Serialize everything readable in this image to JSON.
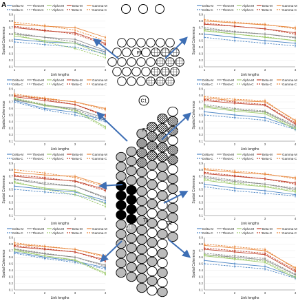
{
  "figure": {
    "panel_letter": "A",
    "region_labels": [
      "F1",
      "C1",
      "F2",
      "T1",
      "O1",
      "O2"
    ]
  },
  "legend_entries": [
    "Delta-M",
    "Theta-M",
    "Alpha-M",
    "Beta-M",
    "Gamma-M",
    "Delta-C",
    "Theta-C",
    "Alpha-C",
    "Beta-C",
    "Gamma-C"
  ],
  "colors": {
    "Delta": "#4f87c5",
    "Theta": "#8a8a8a",
    "Alpha": "#9cc96b",
    "Beta": "#c0402a",
    "Gamma": "#e8873c"
  },
  "chart_data": [
    {
      "type": "line",
      "xlabel": "Link lengths",
      "ylabel": "Spatial Coherence",
      "x": [
        1,
        2,
        3,
        4
      ],
      "ylim": [
        0.1,
        0.9
      ],
      "yticks": [
        0.1,
        0.2,
        0.3,
        0.4,
        0.5,
        0.6,
        0.7,
        0.8,
        0.9
      ],
      "series": [
        {
          "name": "Delta-M",
          "values": [
            0.52,
            0.48,
            0.46,
            0.33
          ]
        },
        {
          "name": "Theta-M",
          "values": [
            0.6,
            0.55,
            0.52,
            0.35
          ]
        },
        {
          "name": "Alpha-M",
          "values": [
            0.57,
            0.5,
            0.46,
            0.28
          ]
        },
        {
          "name": "Beta-M",
          "values": [
            0.7,
            0.65,
            0.62,
            0.46
          ]
        },
        {
          "name": "Gamma-M",
          "values": [
            0.75,
            0.72,
            0.7,
            0.55
          ]
        },
        {
          "name": "Delta-C",
          "values": [
            0.48,
            0.44,
            0.4,
            0.3
          ]
        },
        {
          "name": "Theta-C",
          "values": [
            0.62,
            0.55,
            0.48,
            0.32
          ]
        },
        {
          "name": "Alpha-C",
          "values": [
            0.6,
            0.48,
            0.38,
            0.24
          ]
        },
        {
          "name": "Beta-C",
          "values": [
            0.72,
            0.66,
            0.6,
            0.44
          ]
        },
        {
          "name": "Gamma-C",
          "values": [
            0.78,
            0.73,
            0.66,
            0.5
          ]
        }
      ]
    },
    {
      "type": "line",
      "xlabel": "Link lengths",
      "ylabel": "Spatial Coherence",
      "x": [
        1,
        2,
        3,
        4
      ],
      "ylim": [
        0.1,
        0.9
      ],
      "yticks": [
        0.1,
        0.2,
        0.3,
        0.4,
        0.5,
        0.6,
        0.7,
        0.8,
        0.9
      ],
      "series": [
        {
          "name": "Delta-M",
          "values": [
            0.6,
            0.55,
            0.5,
            0.46
          ]
        },
        {
          "name": "Theta-M",
          "values": [
            0.68,
            0.63,
            0.6,
            0.55
          ]
        },
        {
          "name": "Alpha-M",
          "values": [
            0.65,
            0.6,
            0.55,
            0.5
          ]
        },
        {
          "name": "Beta-M",
          "values": [
            0.75,
            0.72,
            0.68,
            0.62
          ]
        },
        {
          "name": "Gamma-M",
          "values": [
            0.8,
            0.77,
            0.74,
            0.7
          ]
        },
        {
          "name": "Delta-C",
          "values": [
            0.55,
            0.5,
            0.46,
            0.42
          ]
        },
        {
          "name": "Theta-C",
          "values": [
            0.7,
            0.64,
            0.6,
            0.54
          ]
        },
        {
          "name": "Alpha-C",
          "values": [
            0.67,
            0.6,
            0.56,
            0.5
          ]
        },
        {
          "name": "Beta-C",
          "values": [
            0.77,
            0.72,
            0.68,
            0.6
          ]
        },
        {
          "name": "Gamma-C",
          "values": [
            0.82,
            0.78,
            0.75,
            0.68
          ]
        }
      ]
    },
    {
      "type": "line",
      "xlabel": "Link lengths",
      "ylabel": "Spatial Coherence",
      "x": [
        1,
        2,
        3,
        4
      ],
      "ylim": [
        0.1,
        0.9
      ],
      "yticks": [
        0.1,
        0.2,
        0.3,
        0.4,
        0.5,
        0.6,
        0.7,
        0.8,
        0.9
      ],
      "series": [
        {
          "name": "Delta-M",
          "values": [
            0.72,
            0.6,
            0.54,
            0.42
          ]
        },
        {
          "name": "Theta-M",
          "values": [
            0.73,
            0.65,
            0.6,
            0.45
          ]
        },
        {
          "name": "Alpha-M",
          "values": [
            0.75,
            0.64,
            0.58,
            0.32
          ]
        },
        {
          "name": "Beta-M",
          "values": [
            0.78,
            0.72,
            0.66,
            0.5
          ]
        },
        {
          "name": "Gamma-M",
          "values": [
            0.8,
            0.75,
            0.7,
            0.6
          ]
        },
        {
          "name": "Delta-C",
          "values": [
            0.7,
            0.58,
            0.5,
            0.4
          ]
        },
        {
          "name": "Theta-C",
          "values": [
            0.74,
            0.66,
            0.58,
            0.42
          ]
        },
        {
          "name": "Alpha-C",
          "values": [
            0.76,
            0.66,
            0.56,
            0.3
          ]
        },
        {
          "name": "Beta-C",
          "values": [
            0.8,
            0.74,
            0.66,
            0.48
          ]
        },
        {
          "name": "Gamma-C",
          "values": [
            0.82,
            0.76,
            0.7,
            0.58
          ]
        }
      ]
    },
    {
      "type": "line",
      "xlabel": "Link lengths",
      "ylabel": "Spatial Coherence",
      "x": [
        1,
        2,
        3,
        4
      ],
      "ylim": [
        0.1,
        0.9
      ],
      "yticks": [
        0.1,
        0.2,
        0.3,
        0.4,
        0.5,
        0.6,
        0.7,
        0.8,
        0.9
      ],
      "series": [
        {
          "name": "Delta-M",
          "values": [
            0.55,
            0.5,
            0.46,
            0.3
          ]
        },
        {
          "name": "Theta-M",
          "values": [
            0.64,
            0.58,
            0.55,
            0.32
          ]
        },
        {
          "name": "Alpha-M",
          "values": [
            0.62,
            0.56,
            0.52,
            0.28
          ]
        },
        {
          "name": "Beta-M",
          "values": [
            0.72,
            0.68,
            0.65,
            0.36
          ]
        },
        {
          "name": "Gamma-M",
          "values": [
            0.76,
            0.72,
            0.7,
            0.42
          ]
        },
        {
          "name": "Delta-C",
          "values": [
            0.5,
            0.46,
            0.42,
            0.28
          ]
        },
        {
          "name": "Theta-C",
          "values": [
            0.66,
            0.6,
            0.56,
            0.34
          ]
        },
        {
          "name": "Alpha-C",
          "values": [
            0.64,
            0.58,
            0.54,
            0.3
          ]
        },
        {
          "name": "Beta-C",
          "values": [
            0.74,
            0.7,
            0.66,
            0.38
          ]
        },
        {
          "name": "Gamma-C",
          "values": [
            0.78,
            0.74,
            0.72,
            0.4
          ]
        }
      ]
    },
    {
      "type": "line",
      "xlabel": "Link lengths",
      "ylabel": "Spatial Coherence",
      "x": [
        1,
        2,
        3,
        4
      ],
      "ylim": [
        0.1,
        0.9
      ],
      "yticks": [
        0.1,
        0.2,
        0.3,
        0.4,
        0.5,
        0.6,
        0.7,
        0.8,
        0.9
      ],
      "series": [
        {
          "name": "Delta-M",
          "values": [
            0.55,
            0.5,
            0.46,
            0.33
          ]
        },
        {
          "name": "Theta-M",
          "values": [
            0.65,
            0.58,
            0.55,
            0.38
          ]
        },
        {
          "name": "Alpha-M",
          "values": [
            0.6,
            0.52,
            0.48,
            0.28
          ]
        },
        {
          "name": "Beta-M",
          "values": [
            0.7,
            0.66,
            0.63,
            0.5
          ]
        },
        {
          "name": "Gamma-M",
          "values": [
            0.76,
            0.72,
            0.7,
            0.56
          ]
        },
        {
          "name": "Delta-C",
          "values": [
            0.5,
            0.46,
            0.42,
            0.3
          ]
        },
        {
          "name": "Theta-C",
          "values": [
            0.66,
            0.6,
            0.55,
            0.36
          ]
        },
        {
          "name": "Alpha-C",
          "values": [
            0.62,
            0.5,
            0.42,
            0.24
          ]
        },
        {
          "name": "Beta-C",
          "values": [
            0.72,
            0.68,
            0.62,
            0.48
          ]
        },
        {
          "name": "Gamma-C",
          "values": [
            0.8,
            0.75,
            0.68,
            0.54
          ]
        }
      ]
    },
    {
      "type": "line",
      "xlabel": "Link lengths",
      "ylabel": "Spatial Coherence",
      "x": [
        1,
        2,
        3,
        4
      ],
      "ylim": [
        0.1,
        0.9
      ],
      "yticks": [
        0.1,
        0.2,
        0.3,
        0.4,
        0.5,
        0.6,
        0.7,
        0.8,
        0.9
      ],
      "series": [
        {
          "name": "Delta-M",
          "values": [
            0.58,
            0.52,
            0.48,
            0.42
          ]
        },
        {
          "name": "Theta-M",
          "values": [
            0.68,
            0.62,
            0.58,
            0.5
          ]
        },
        {
          "name": "Alpha-M",
          "values": [
            0.64,
            0.58,
            0.54,
            0.46
          ]
        },
        {
          "name": "Beta-M",
          "values": [
            0.74,
            0.7,
            0.66,
            0.6
          ]
        },
        {
          "name": "Gamma-M",
          "values": [
            0.8,
            0.76,
            0.73,
            0.68
          ]
        },
        {
          "name": "Delta-C",
          "values": [
            0.54,
            0.48,
            0.44,
            0.4
          ]
        },
        {
          "name": "Theta-C",
          "values": [
            0.7,
            0.64,
            0.58,
            0.52
          ]
        },
        {
          "name": "Alpha-C",
          "values": [
            0.66,
            0.6,
            0.55,
            0.48
          ]
        },
        {
          "name": "Beta-C",
          "values": [
            0.76,
            0.71,
            0.66,
            0.58
          ]
        },
        {
          "name": "Gamma-C",
          "values": [
            0.82,
            0.78,
            0.74,
            0.66
          ]
        }
      ]
    },
    {
      "type": "line",
      "xlabel": "Link lengths",
      "ylabel": "Spatial Coherence",
      "x": [
        1,
        2,
        3,
        4
      ],
      "ylim": [
        0.1,
        0.9
      ],
      "yticks": [
        0.1,
        0.2,
        0.3,
        0.4,
        0.5,
        0.6,
        0.7,
        0.8,
        0.9
      ],
      "series": [
        {
          "name": "Delta-M",
          "values": [
            0.68,
            0.6,
            0.54,
            0.44
          ]
        },
        {
          "name": "Theta-M",
          "values": [
            0.72,
            0.65,
            0.6,
            0.48
          ]
        },
        {
          "name": "Alpha-M",
          "values": [
            0.7,
            0.62,
            0.56,
            0.36
          ]
        },
        {
          "name": "Beta-M",
          "values": [
            0.76,
            0.72,
            0.68,
            0.56
          ]
        },
        {
          "name": "Gamma-M",
          "values": [
            0.8,
            0.76,
            0.72,
            0.62
          ]
        },
        {
          "name": "Delta-C",
          "values": [
            0.66,
            0.58,
            0.52,
            0.42
          ]
        },
        {
          "name": "Theta-C",
          "values": [
            0.73,
            0.66,
            0.6,
            0.46
          ]
        },
        {
          "name": "Alpha-C",
          "values": [
            0.72,
            0.62,
            0.55,
            0.34
          ]
        },
        {
          "name": "Beta-C",
          "values": [
            0.78,
            0.73,
            0.68,
            0.54
          ]
        },
        {
          "name": "Gamma-C",
          "values": [
            0.82,
            0.77,
            0.72,
            0.6
          ]
        }
      ]
    },
    {
      "type": "line",
      "xlabel": "Link lengths",
      "ylabel": "Spatial Coherence",
      "x": [
        1,
        2,
        3,
        4
      ],
      "ylim": [
        0.1,
        0.9
      ],
      "yticks": [
        0.1,
        0.2,
        0.3,
        0.4,
        0.5,
        0.6,
        0.7,
        0.8,
        0.9
      ],
      "series": [
        {
          "name": "Delta-M",
          "values": [
            0.55,
            0.5,
            0.46,
            0.3
          ]
        },
        {
          "name": "Theta-M",
          "values": [
            0.64,
            0.6,
            0.56,
            0.33
          ]
        },
        {
          "name": "Alpha-M",
          "values": [
            0.62,
            0.57,
            0.52,
            0.28
          ]
        },
        {
          "name": "Beta-M",
          "values": [
            0.72,
            0.68,
            0.64,
            0.38
          ]
        },
        {
          "name": "Gamma-M",
          "values": [
            0.78,
            0.74,
            0.7,
            0.44
          ]
        },
        {
          "name": "Delta-C",
          "values": [
            0.5,
            0.46,
            0.42,
            0.28
          ]
        },
        {
          "name": "Theta-C",
          "values": [
            0.66,
            0.62,
            0.58,
            0.34
          ]
        },
        {
          "name": "Alpha-C",
          "values": [
            0.64,
            0.58,
            0.54,
            0.3
          ]
        },
        {
          "name": "Beta-C",
          "values": [
            0.74,
            0.7,
            0.66,
            0.4
          ]
        },
        {
          "name": "Gamma-C",
          "values": [
            0.8,
            0.76,
            0.72,
            0.42
          ]
        }
      ]
    }
  ]
}
